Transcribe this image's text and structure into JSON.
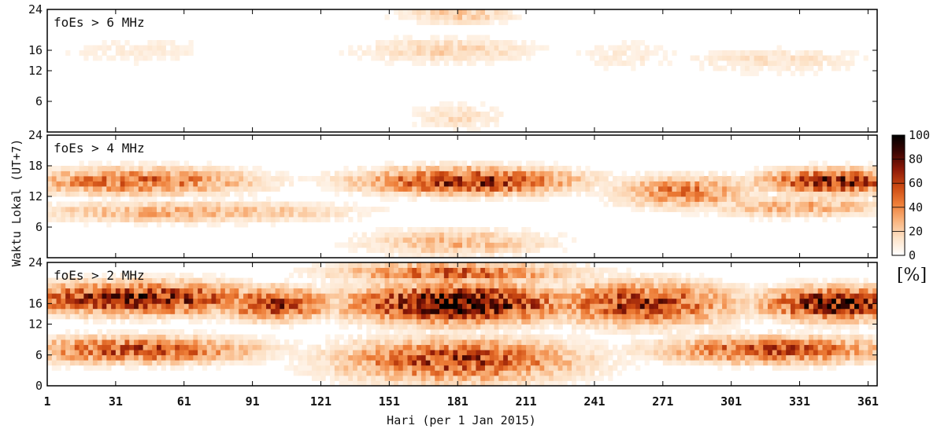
{
  "chart_data": {
    "type": "heatmap",
    "xlabel": "Hari (per 1 Jan 2015)",
    "ylabel": "Waktu Lokal (UT+7)",
    "x_ticks": [
      1,
      31,
      61,
      91,
      121,
      151,
      181,
      211,
      241,
      271,
      301,
      331,
      361
    ],
    "x_range": [
      1,
      365
    ],
    "y_range": [
      0,
      24
    ],
    "colorbar": {
      "ticks": [
        0,
        20,
        40,
        60,
        80,
        100
      ],
      "range": [
        0,
        100
      ],
      "unit": "[%]",
      "colors": [
        "#ffffff",
        "#fde3c9",
        "#f9b47e",
        "#ee7e38",
        "#cc4a12",
        "#8e1a08",
        "#3d0502",
        "#000000"
      ]
    },
    "panels": [
      {
        "label": "foEs > 6 MHz",
        "y_ticks": [
          6,
          12,
          16,
          24
        ],
        "hotspots": [
          {
            "day": 180,
            "hour": 23,
            "value": 22,
            "day_spread": 25,
            "hour_spread": 1.8
          },
          {
            "day": 175,
            "hour": 16,
            "value": 18,
            "day_spread": 40,
            "hour_spread": 2.5
          },
          {
            "day": 180,
            "hour": 3,
            "value": 16,
            "day_spread": 20,
            "hour_spread": 2.5
          },
          {
            "day": 320,
            "hour": 14,
            "value": 14,
            "day_spread": 40,
            "hour_spread": 2.5
          },
          {
            "day": 40,
            "hour": 16,
            "value": 9,
            "day_spread": 40,
            "hour_spread": 3
          },
          {
            "day": 255,
            "hour": 15,
            "value": 10,
            "day_spread": 25,
            "hour_spread": 3
          }
        ]
      },
      {
        "label": "foEs > 4 MHz",
        "y_ticks": [
          6,
          12,
          18,
          24
        ],
        "hotspots": [
          {
            "day": 185,
            "hour": 15,
            "value": 68,
            "day_spread": 45,
            "hour_spread": 2.5
          },
          {
            "day": 345,
            "hour": 15,
            "value": 72,
            "day_spread": 30,
            "hour_spread": 2.2
          },
          {
            "day": 40,
            "hour": 15,
            "value": 48,
            "day_spread": 50,
            "hour_spread": 2.5
          },
          {
            "day": 280,
            "hour": 13,
            "value": 42,
            "day_spread": 30,
            "hour_spread": 3
          },
          {
            "day": 60,
            "hour": 9,
            "value": 30,
            "day_spread": 70,
            "hour_spread": 2
          },
          {
            "day": 180,
            "hour": 3,
            "value": 28,
            "day_spread": 40,
            "hour_spread": 2.5
          },
          {
            "day": 330,
            "hour": 10,
            "value": 30,
            "day_spread": 40,
            "hour_spread": 2
          }
        ]
      },
      {
        "label": "foEs > 2 MHz",
        "y_ticks": [
          0,
          6,
          12,
          16,
          24
        ],
        "hotspots": [
          {
            "day": 180,
            "hour": 16,
            "value": 92,
            "day_spread": 45,
            "hour_spread": 3.5
          },
          {
            "day": 345,
            "hour": 16,
            "value": 80,
            "day_spread": 30,
            "hour_spread": 3
          },
          {
            "day": 40,
            "hour": 17,
            "value": 72,
            "day_spread": 55,
            "hour_spread": 3
          },
          {
            "day": 100,
            "hour": 16,
            "value": 62,
            "day_spread": 25,
            "hour_spread": 3
          },
          {
            "day": 260,
            "hour": 16,
            "value": 62,
            "day_spread": 40,
            "hour_spread": 4
          },
          {
            "day": 180,
            "hour": 5,
            "value": 60,
            "day_spread": 50,
            "hour_spread": 4
          },
          {
            "day": 40,
            "hour": 7,
            "value": 55,
            "day_spread": 50,
            "hour_spread": 2.5
          },
          {
            "day": 320,
            "hour": 7,
            "value": 55,
            "day_spread": 50,
            "hour_spread": 2.5
          },
          {
            "day": 180,
            "hour": 22,
            "value": 50,
            "day_spread": 50,
            "hour_spread": 2
          }
        ]
      }
    ]
  }
}
